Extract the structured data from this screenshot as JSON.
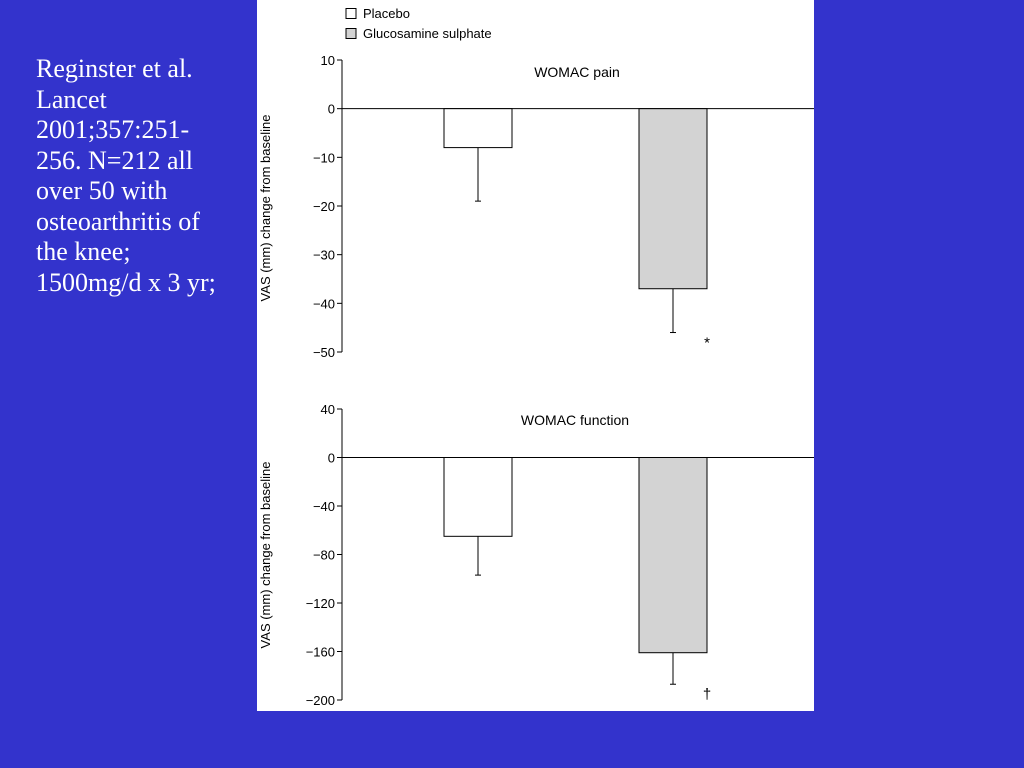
{
  "slide": {
    "caption": "Reginster et al. Lancet 2001;357:251-256. N=212 all over 50 with osteoarthritis of the knee; 1500mg/d x 3 yr;",
    "background_color": "#3333cc",
    "text_color": "#ffffff"
  },
  "legend": {
    "placement": "top",
    "items": [
      {
        "label": "Placebo",
        "color": "#ffffff"
      },
      {
        "label": "Glucosamine sulphate",
        "color": "#d3d3d3"
      }
    ]
  },
  "chart_data": [
    {
      "type": "bar",
      "title": "WOMAC pain",
      "ylabel": "VAS (mm) change from baseline",
      "xlabel": "",
      "ylim": [
        -50,
        10
      ],
      "yticks": [
        10,
        0,
        -10,
        -20,
        -30,
        -40,
        -50
      ],
      "tick_labels": [
        "10",
        "0",
        "−10",
        "−20",
        "−30",
        "−40",
        "−50"
      ],
      "categories": [
        "Placebo",
        "Glucosamine sulphate"
      ],
      "values": [
        -8,
        -37
      ],
      "error_low": [
        -19,
        -46
      ],
      "colors": [
        "#ffffff",
        "#d3d3d3"
      ],
      "annotations": [
        "",
        "*"
      ],
      "grid": false
    },
    {
      "type": "bar",
      "title": "WOMAC function",
      "ylabel": "VAS (mm) change from baseline",
      "xlabel": "",
      "ylim": [
        -200,
        40
      ],
      "yticks": [
        40,
        0,
        -40,
        -80,
        -120,
        -160,
        -200
      ],
      "tick_labels": [
        "40",
        "0",
        "−40",
        "−80",
        "−120",
        "−160",
        "−200"
      ],
      "categories": [
        "Placebo",
        "Glucosamine sulphate"
      ],
      "values": [
        -65,
        -161
      ],
      "error_low": [
        -97,
        -187
      ],
      "colors": [
        "#ffffff",
        "#d3d3d3"
      ],
      "annotations": [
        "",
        "†"
      ],
      "grid": false
    }
  ]
}
